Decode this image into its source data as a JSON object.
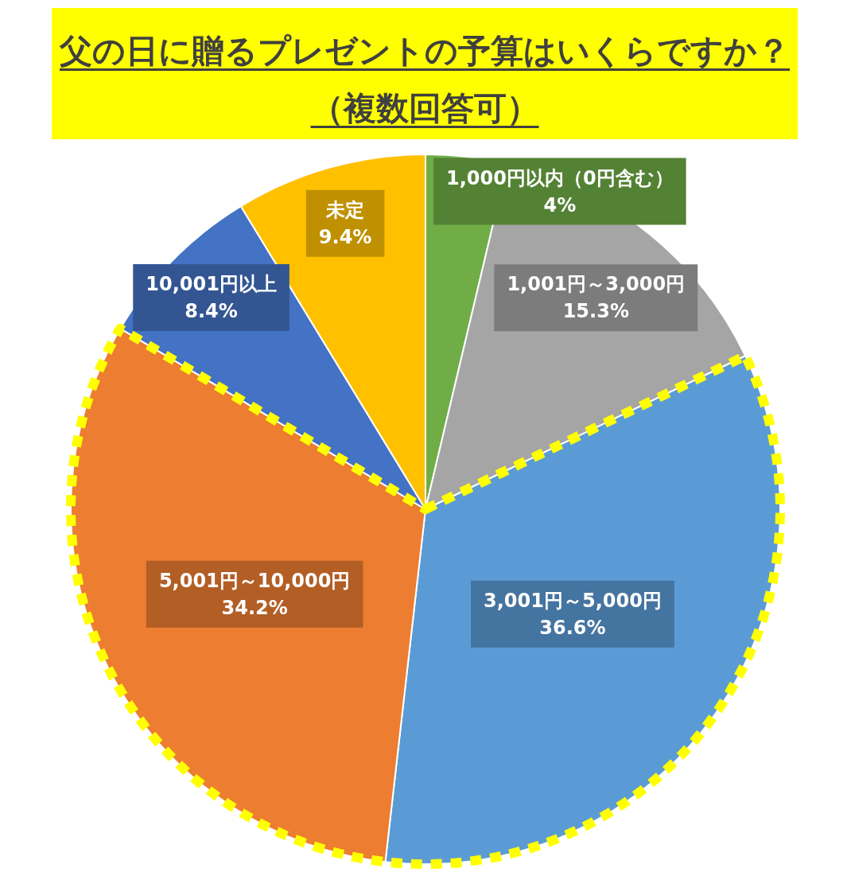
{
  "chart_data": {
    "type": "pie",
    "title": "父の日に贈るプレゼントの予算はいくらですか？",
    "subtitle": "（複数回答可）",
    "categories": [
      "1,000円以内（0円含む）",
      "1,001円～3,000円",
      "3,001円～5,000円",
      "5,001円～10,000円",
      "10,001円以上",
      "未定"
    ],
    "values": [
      4,
      15.3,
      36.6,
      34.2,
      8.4,
      9.4
    ],
    "value_labels": [
      "4%",
      "15.3%",
      "36.6%",
      "34.2%",
      "8.4%",
      "9.4%"
    ],
    "colors": [
      "#70ad47",
      "#a5a5a5",
      "#5b9bd5",
      "#ed7d31",
      "#4472c4",
      "#ffc000"
    ]
  }
}
